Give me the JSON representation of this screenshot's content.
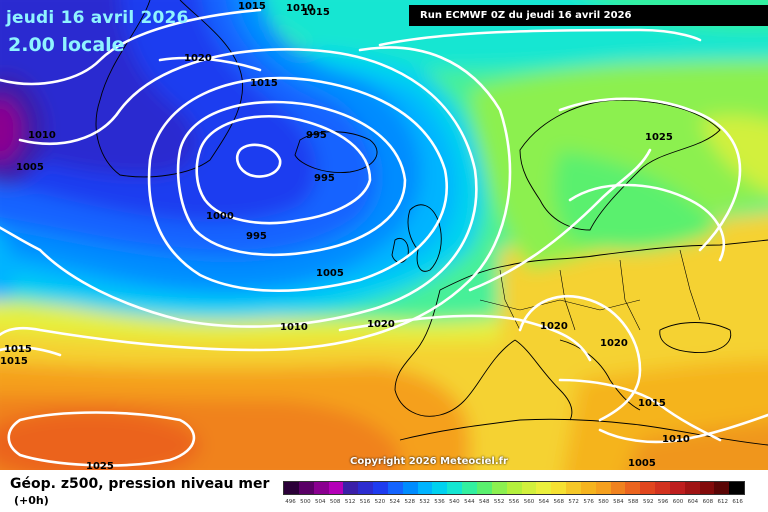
{
  "header": {
    "date": "jeudi 16 avril 2026",
    "local_time": "2.00 locale",
    "run_info": "Run ECMWF 0Z du jeudi 16 avril 2026"
  },
  "footer": {
    "field_title": "Géop. z500, pression niveau mer",
    "forecast_step": "(+0h)",
    "copyright": "Copyright 2026 Meteociel.fr"
  },
  "legend": {
    "values": [
      "496",
      "500",
      "504",
      "508",
      "512",
      "516",
      "520",
      "524",
      "528",
      "532",
      "536",
      "540",
      "544",
      "548",
      "552",
      "556",
      "560",
      "564",
      "568",
      "572",
      "576",
      "580",
      "584",
      "588",
      "592",
      "596",
      "600",
      "604",
      "608",
      "612",
      "616"
    ],
    "colors": [
      "#2b0038",
      "#5a0066",
      "#8a0090",
      "#b400b8",
      "#3b1fa8",
      "#2c2cd0",
      "#1e3cf0",
      "#1464ff",
      "#008cff",
      "#00b4ff",
      "#00d2f0",
      "#14e6d2",
      "#32f0a0",
      "#5af06e",
      "#8cf050",
      "#b4f03c",
      "#d2f03c",
      "#ebf03c",
      "#f5e132",
      "#f5c828",
      "#f5b41e",
      "#f5a01e",
      "#f0821e",
      "#eb641e",
      "#e1461e",
      "#d2321e",
      "#be1e1e",
      "#a01414",
      "#820a0a",
      "#5a0505",
      "#000000"
    ]
  },
  "isobars": [
    {
      "label": "1015"
    },
    {
      "label": "1010"
    },
    {
      "label": "1015"
    },
    {
      "label": "1020"
    },
    {
      "label": "1015"
    },
    {
      "label": "1010"
    },
    {
      "label": "1005"
    },
    {
      "label": "995"
    },
    {
      "label": "995"
    },
    {
      "label": "1000"
    },
    {
      "label": "995"
    },
    {
      "label": "1005"
    },
    {
      "label": "1010"
    },
    {
      "label": "1020"
    },
    {
      "label": "1025"
    },
    {
      "label": "1020"
    },
    {
      "label": "1020"
    },
    {
      "label": "1015"
    },
    {
      "label": "1010"
    },
    {
      "label": "1005"
    },
    {
      "label": "1015"
    },
    {
      "label": "1015"
    },
    {
      "label": "1025"
    }
  ]
}
